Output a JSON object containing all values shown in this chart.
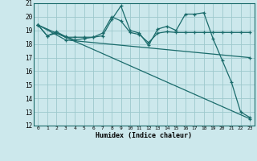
{
  "xlabel": "Humidex (Indice chaleur)",
  "bg_color": "#cce8ec",
  "grid_color": "#9dc8cc",
  "line_color": "#1a6b6b",
  "xlim": [
    -0.5,
    23.5
  ],
  "ylim": [
    12,
    21
  ],
  "yticks": [
    12,
    13,
    14,
    15,
    16,
    17,
    18,
    19,
    20,
    21
  ],
  "xticks": [
    0,
    1,
    2,
    3,
    4,
    5,
    6,
    7,
    8,
    9,
    10,
    11,
    12,
    13,
    14,
    15,
    16,
    17,
    18,
    19,
    20,
    21,
    22,
    23
  ],
  "lines": [
    {
      "x": [
        0,
        1,
        2,
        3,
        4,
        5,
        6,
        7,
        8,
        9,
        10,
        11,
        12,
        13,
        14,
        15,
        16,
        17,
        18,
        19,
        20,
        21,
        22,
        23
      ],
      "y": [
        19.4,
        18.6,
        18.8,
        18.5,
        18.5,
        18.5,
        18.5,
        18.6,
        19.8,
        20.8,
        19.0,
        18.8,
        17.9,
        19.1,
        19.3,
        19.0,
        20.2,
        20.2,
        20.3,
        18.4,
        16.8,
        15.2,
        13.0,
        12.6
      ]
    },
    {
      "x": [
        0,
        1,
        2,
        3,
        4,
        5,
        6,
        7,
        8,
        9,
        10,
        11,
        12,
        13,
        14,
        15,
        16,
        17,
        18,
        19,
        20,
        21,
        22,
        23
      ],
      "y": [
        19.4,
        18.6,
        18.9,
        18.55,
        18.3,
        18.4,
        18.5,
        18.8,
        20.0,
        19.7,
        18.85,
        18.7,
        18.1,
        18.8,
        18.9,
        18.85,
        18.85,
        18.85,
        18.85,
        18.85,
        18.85,
        18.85,
        18.85,
        18.85
      ]
    },
    {
      "x": [
        0,
        23
      ],
      "y": [
        19.4,
        12.5
      ]
    },
    {
      "x": [
        0,
        3,
        23
      ],
      "y": [
        19.4,
        18.3,
        17.0
      ]
    }
  ]
}
